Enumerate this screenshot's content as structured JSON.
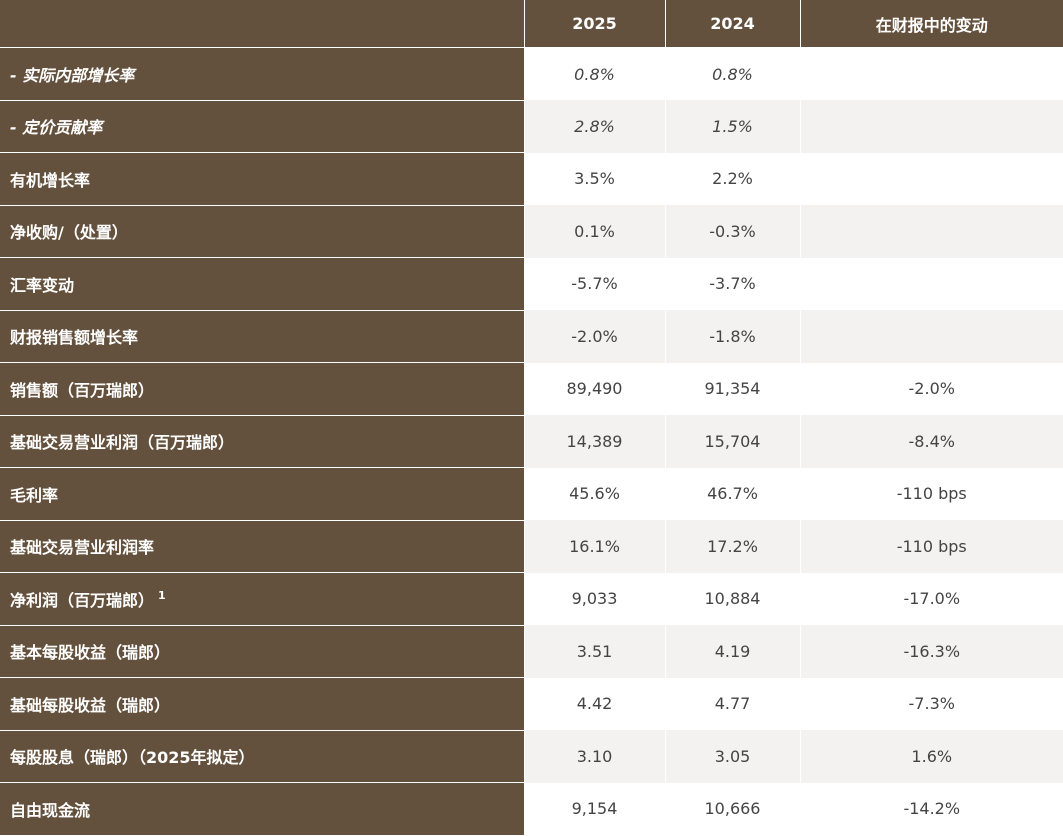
{
  "header": {
    "col_label": "",
    "col_2025": "2025",
    "col_2024": "2024",
    "col_change": "在财报中的变动"
  },
  "rows": [
    {
      "label": "- 实际内部增长率",
      "footnote": "",
      "v2025": "0.8%",
      "v2024": "0.8%",
      "change": "",
      "italic": true
    },
    {
      "label": "- 定价贡献率",
      "footnote": "",
      "v2025": "2.8%",
      "v2024": "1.5%",
      "change": "",
      "italic": true
    },
    {
      "label": "有机增长率",
      "footnote": "",
      "v2025": "3.5%",
      "v2024": "2.2%",
      "change": ""
    },
    {
      "label": "净收购/（处置）",
      "footnote": "",
      "v2025": "0.1%",
      "v2024": "-0.3%",
      "change": ""
    },
    {
      "label": "汇率变动",
      "footnote": "",
      "v2025": "-5.7%",
      "v2024": "-3.7%",
      "change": ""
    },
    {
      "label": "财报销售额增长率",
      "footnote": "",
      "v2025": "-2.0%",
      "v2024": "-1.8%",
      "change": ""
    },
    {
      "label": "销售额（百万瑞郎）",
      "footnote": "",
      "v2025": "89,490",
      "v2024": "91,354",
      "change": "-2.0%"
    },
    {
      "label": "基础交易营业利润（百万瑞郎）",
      "footnote": "",
      "v2025": "14,389",
      "v2024": "15,704",
      "change": "-8.4%"
    },
    {
      "label": "毛利率",
      "footnote": "",
      "v2025": "45.6%",
      "v2024": "46.7%",
      "change": "-110 bps"
    },
    {
      "label": "基础交易营业利润率",
      "footnote": "",
      "v2025": "16.1%",
      "v2024": "17.2%",
      "change": "-110 bps"
    },
    {
      "label": "净利润（百万瑞郎）",
      "footnote": "1",
      "v2025": "9,033",
      "v2024": "10,884",
      "change": "-17.0%"
    },
    {
      "label": "基本每股收益（瑞郎）",
      "footnote": "",
      "v2025": "3.51",
      "v2024": "4.19",
      "change": "-16.3%"
    },
    {
      "label": "基础每股收益（瑞郎）",
      "footnote": "",
      "v2025": "4.42",
      "v2024": "4.77",
      "change": "-7.3%"
    },
    {
      "label": "每股股息（瑞郎）（2025年拟定）",
      "footnote": "",
      "v2025": "3.10",
      "v2024": "3.05",
      "change": "1.6%"
    },
    {
      "label": "自由现金流",
      "footnote": "",
      "v2025": "9,154",
      "v2024": "10,666",
      "change": "-14.2%"
    }
  ],
  "colors": {
    "header_bg": "#64513d",
    "row_alt_bg": "#f3f2f1",
    "value_text": "#444444"
  }
}
